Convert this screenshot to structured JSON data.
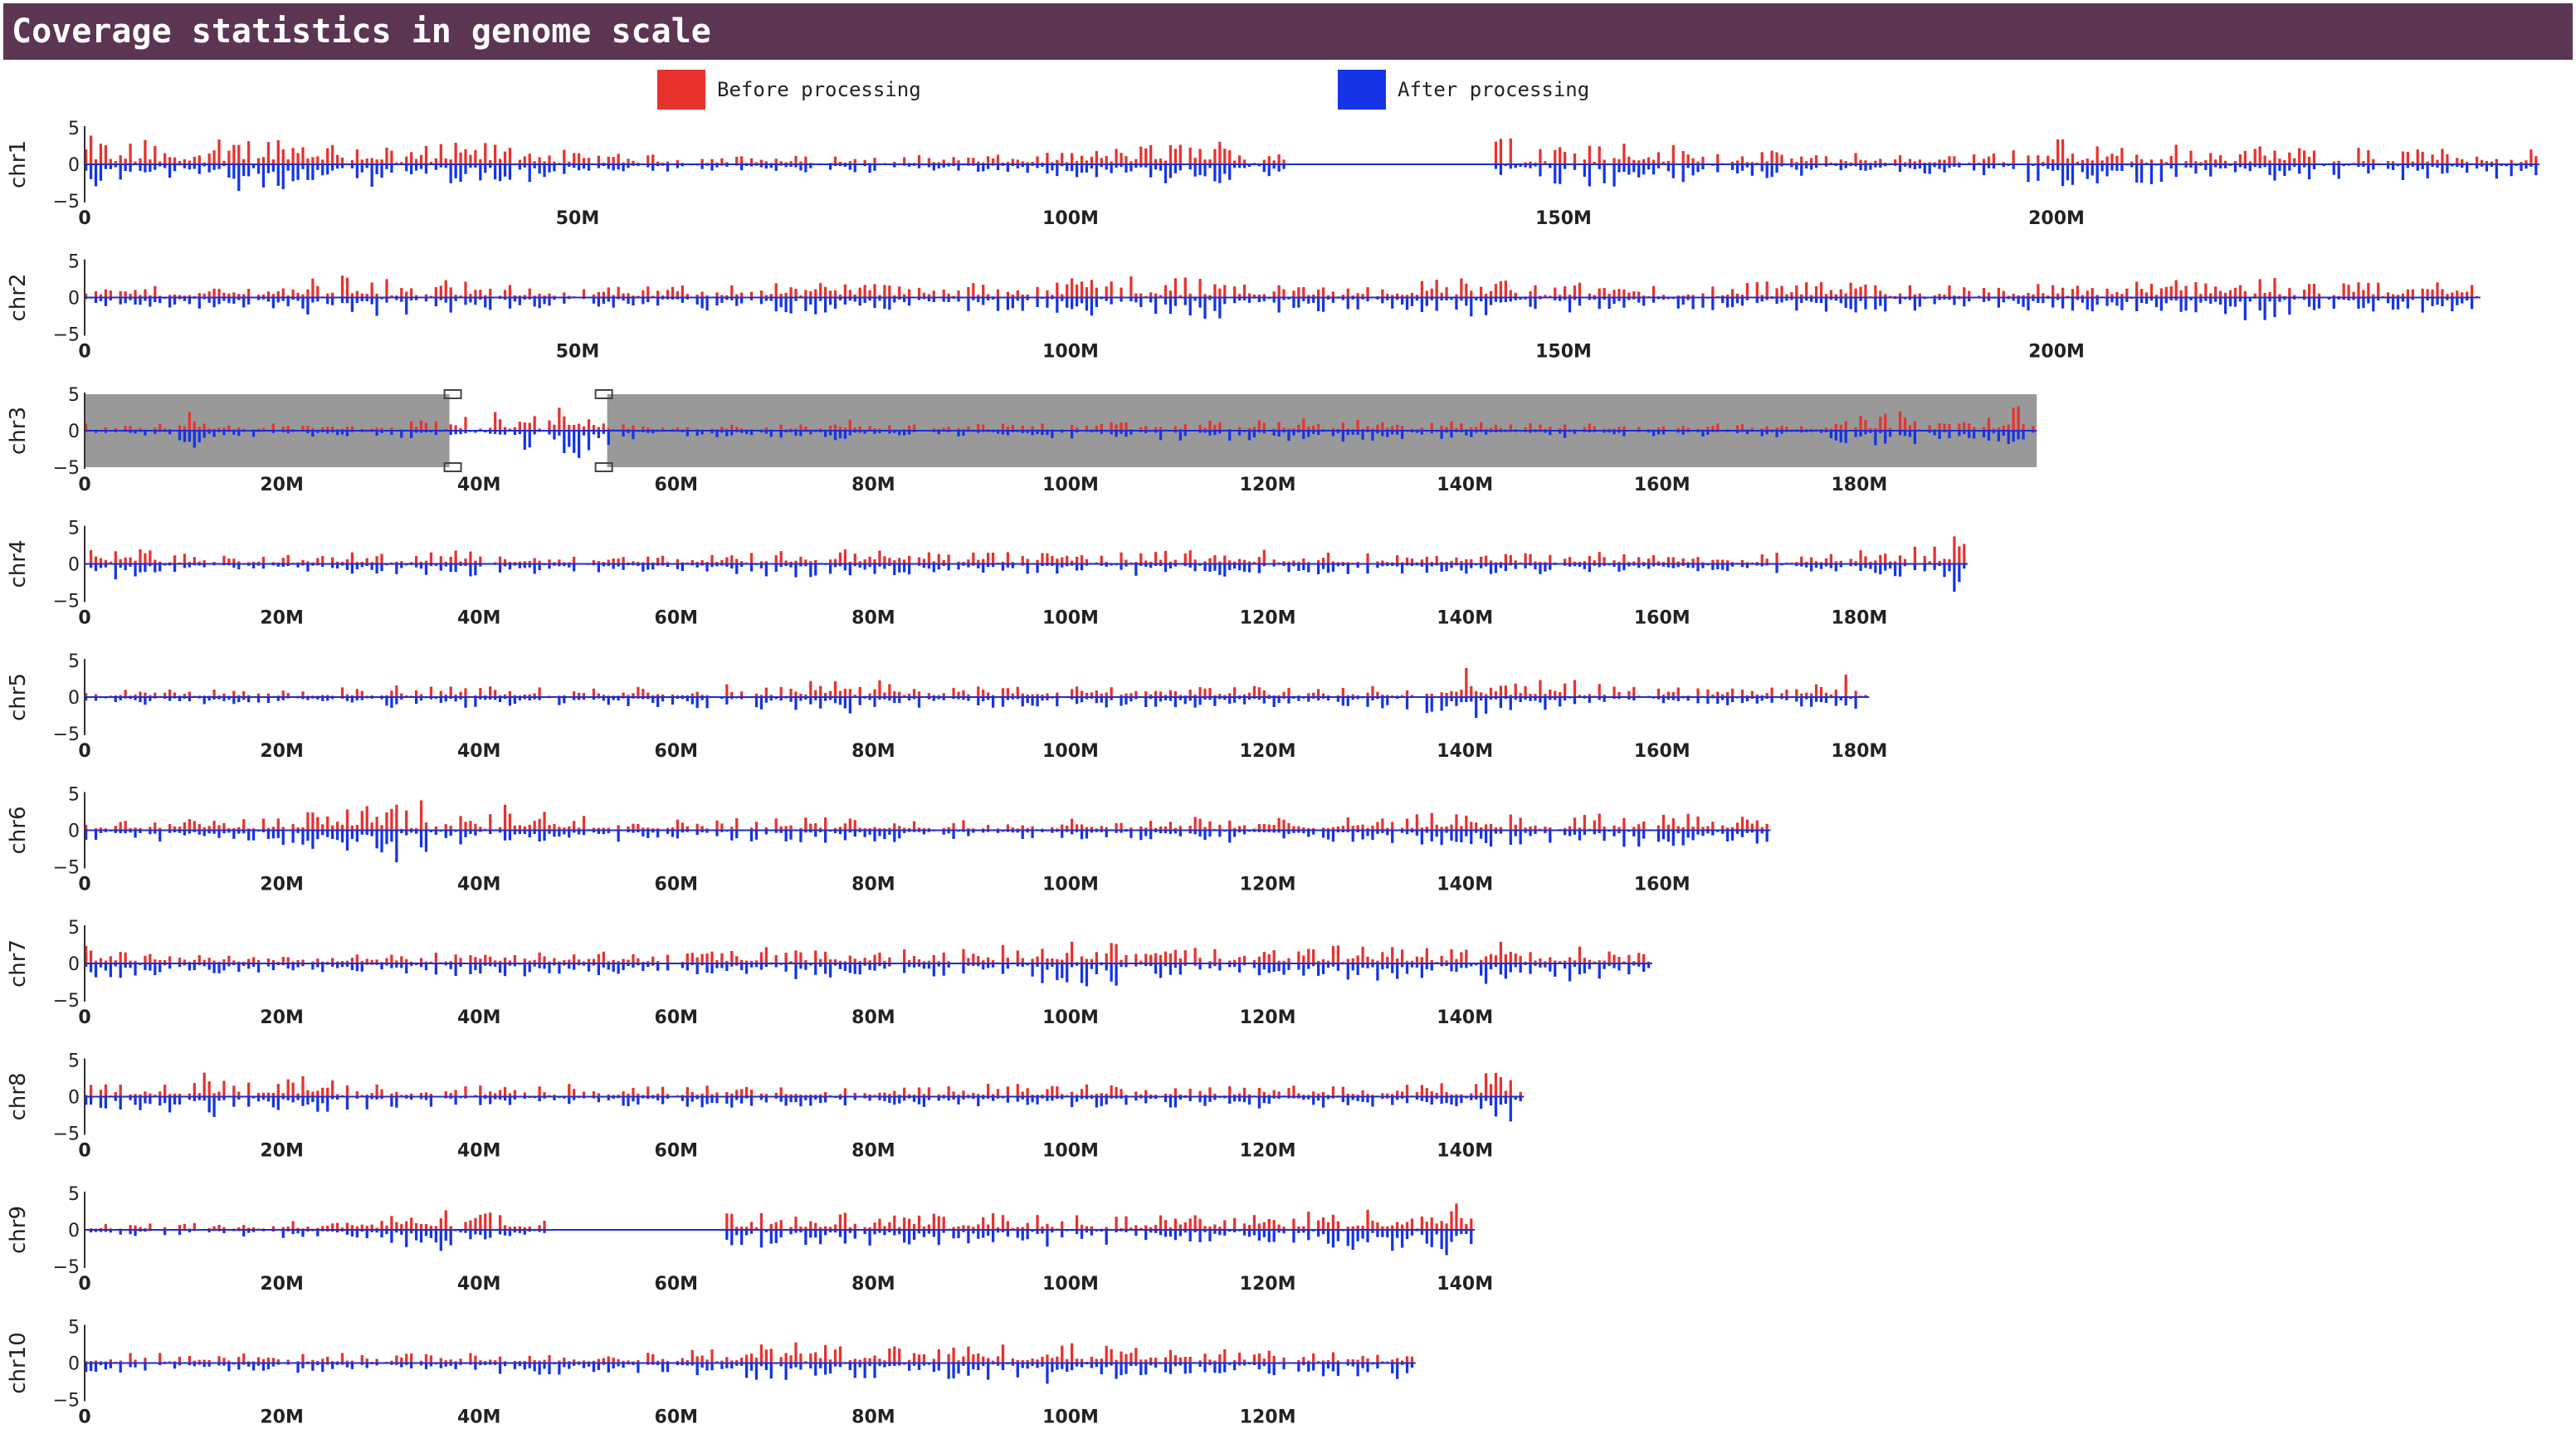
{
  "title": "Coverage statistics in genome scale",
  "legend": {
    "before_label": "Before processing",
    "after_label": "After processing",
    "before_color": "#e8322e",
    "after_color": "#1434e6"
  },
  "colors": {
    "axis": "#333333",
    "zero_line": "#1f2bd8",
    "highlight_band": "#999999",
    "selection_box": "#ffffff"
  },
  "chart_data": {
    "type": "bar",
    "y_ticks": [
      "5",
      "0",
      "−5"
    ],
    "ylim": [
      -5,
      5
    ],
    "bin_size_mb": 1,
    "selection": {
      "chromosome": "chr3",
      "region_mb": [
        37,
        53
      ]
    },
    "chromosomes": [
      {
        "name": "chr1",
        "length_mb": 249,
        "tick_values": [
          0,
          50,
          100,
          150,
          200
        ],
        "tick_labels": [
          "0",
          "50M",
          "100M",
          "150M",
          "200M"
        ],
        "gaps_mb": [
          [
            122,
            143
          ]
        ],
        "amplitude_profile": [
          [
            0,
            4.0
          ],
          [
            5,
            3.5
          ],
          [
            10,
            3.4
          ],
          [
            15,
            3.8
          ],
          [
            20,
            4.6
          ],
          [
            25,
            3.8
          ],
          [
            30,
            3.2
          ],
          [
            35,
            2.8
          ],
          [
            40,
            3.2
          ],
          [
            45,
            3.0
          ],
          [
            50,
            1.6
          ],
          [
            60,
            1.3
          ],
          [
            70,
            1.2
          ],
          [
            80,
            1.3
          ],
          [
            95,
            1.3
          ],
          [
            105,
            2.5
          ],
          [
            110,
            3.2
          ],
          [
            115,
            3.6
          ],
          [
            121,
            3.0
          ],
          [
            143,
            3.8
          ],
          [
            148,
            4.8
          ],
          [
            152,
            4.2
          ],
          [
            158,
            3.5
          ],
          [
            165,
            2.2
          ],
          [
            175,
            1.8
          ],
          [
            185,
            1.4
          ],
          [
            195,
            2.0
          ],
          [
            200,
            3.8
          ],
          [
            210,
            3.0
          ],
          [
            220,
            2.6
          ],
          [
            230,
            2.5
          ],
          [
            240,
            2.2
          ],
          [
            249,
            2.0
          ]
        ]
      },
      {
        "name": "chr2",
        "length_mb": 243,
        "tick_values": [
          0,
          50,
          100,
          150,
          200
        ],
        "tick_labels": [
          "0",
          "50M",
          "100M",
          "150M",
          "200M"
        ],
        "gaps_mb": [],
        "amplitude_profile": [
          [
            0,
            1.5
          ],
          [
            10,
            1.6
          ],
          [
            20,
            1.8
          ],
          [
            25,
            3.5
          ],
          [
            30,
            3.2
          ],
          [
            40,
            2.0
          ],
          [
            50,
            1.4
          ],
          [
            60,
            1.8
          ],
          [
            70,
            2.2
          ],
          [
            75,
            2.8
          ],
          [
            85,
            1.6
          ],
          [
            95,
            2.5
          ],
          [
            100,
            3.2
          ],
          [
            110,
            3.6
          ],
          [
            120,
            2.5
          ],
          [
            130,
            1.8
          ],
          [
            140,
            3.0
          ],
          [
            150,
            2.3
          ],
          [
            160,
            1.6
          ],
          [
            170,
            2.2
          ],
          [
            180,
            2.2
          ],
          [
            190,
            1.8
          ],
          [
            200,
            2.0
          ],
          [
            210,
            2.4
          ],
          [
            220,
            4.2
          ],
          [
            225,
            2.0
          ],
          [
            235,
            2.2
          ],
          [
            243,
            2.5
          ]
        ]
      },
      {
        "name": "chr3",
        "length_mb": 198,
        "tick_values": [
          0,
          20,
          40,
          60,
          80,
          100,
          120,
          140,
          160,
          180
        ],
        "tick_labels": [
          "0",
          "20M",
          "40M",
          "60M",
          "80M",
          "100M",
          "120M",
          "140M",
          "160M",
          "180M"
        ],
        "gaps_mb": [],
        "amplitude_profile": [
          [
            0,
            1.0
          ],
          [
            9,
            1.2
          ],
          [
            10,
            3.8
          ],
          [
            12,
            1.2
          ],
          [
            20,
            1.0
          ],
          [
            30,
            0.8
          ],
          [
            37,
            2.2
          ],
          [
            42,
            2.6
          ],
          [
            46,
            3.0
          ],
          [
            50,
            4.3
          ],
          [
            53,
            2.2
          ],
          [
            58,
            1.0
          ],
          [
            75,
            1.0
          ],
          [
            76,
            4.5
          ],
          [
            78,
            0.8
          ],
          [
            90,
            1.0
          ],
          [
            105,
            1.2
          ],
          [
            115,
            1.6
          ],
          [
            120,
            1.8
          ],
          [
            130,
            1.5
          ],
          [
            145,
            1.2
          ],
          [
            160,
            1.0
          ],
          [
            175,
            1.2
          ],
          [
            184,
            2.8
          ],
          [
            188,
            1.3
          ],
          [
            196,
            3.6
          ],
          [
            198,
            1.0
          ]
        ]
      },
      {
        "name": "chr4",
        "length_mb": 191,
        "tick_values": [
          0,
          20,
          40,
          60,
          80,
          100,
          120,
          140,
          160,
          180
        ],
        "tick_labels": [
          "0",
          "20M",
          "40M",
          "60M",
          "80M",
          "100M",
          "120M",
          "140M",
          "160M",
          "180M"
        ],
        "gaps_mb": [],
        "amplitude_profile": [
          [
            0,
            3.8
          ],
          [
            5,
            2.5
          ],
          [
            10,
            1.4
          ],
          [
            20,
            1.2
          ],
          [
            35,
            2.0
          ],
          [
            45,
            1.6
          ],
          [
            55,
            1.2
          ],
          [
            65,
            1.6
          ],
          [
            75,
            2.2
          ],
          [
            85,
            1.8
          ],
          [
            95,
            1.6
          ],
          [
            105,
            1.8
          ],
          [
            115,
            2.2
          ],
          [
            125,
            1.6
          ],
          [
            135,
            1.4
          ],
          [
            145,
            1.6
          ],
          [
            155,
            1.8
          ],
          [
            165,
            1.5
          ],
          [
            175,
            1.6
          ],
          [
            185,
            2.2
          ],
          [
            190,
            4.8
          ],
          [
            191,
            1.0
          ]
        ]
      },
      {
        "name": "chr5",
        "length_mb": 181,
        "tick_values": [
          0,
          20,
          40,
          60,
          80,
          100,
          120,
          140,
          160,
          180
        ],
        "tick_labels": [
          "0",
          "20M",
          "40M",
          "60M",
          "80M",
          "100M",
          "120M",
          "140M",
          "160M",
          "180M"
        ],
        "gaps_mb": [],
        "amplitude_profile": [
          [
            0,
            1.5
          ],
          [
            10,
            1.2
          ],
          [
            20,
            1.0
          ],
          [
            30,
            1.6
          ],
          [
            40,
            1.6
          ],
          [
            50,
            1.2
          ],
          [
            60,
            1.6
          ],
          [
            70,
            2.0
          ],
          [
            78,
            2.6
          ],
          [
            85,
            1.8
          ],
          [
            95,
            1.5
          ],
          [
            110,
            1.6
          ],
          [
            125,
            1.5
          ],
          [
            135,
            2.0
          ],
          [
            140,
            4.8
          ],
          [
            143,
            1.6
          ],
          [
            150,
            3.0
          ],
          [
            155,
            1.6
          ],
          [
            165,
            1.2
          ],
          [
            172,
            1.8
          ],
          [
            176,
            2.0
          ],
          [
            178,
            3.4
          ],
          [
            181,
            2.0
          ]
        ]
      },
      {
        "name": "chr6",
        "length_mb": 171,
        "tick_values": [
          0,
          20,
          40,
          60,
          80,
          100,
          120,
          140,
          160
        ],
        "tick_labels": [
          "0",
          "20M",
          "40M",
          "60M",
          "80M",
          "100M",
          "120M",
          "140M",
          "160M"
        ],
        "gaps_mb": [],
        "amplitude_profile": [
          [
            0,
            1.5
          ],
          [
            8,
            2.0
          ],
          [
            15,
            1.4
          ],
          [
            24,
            3.0
          ],
          [
            28,
            4.0
          ],
          [
            31,
            4.8
          ],
          [
            34,
            4.2
          ],
          [
            37,
            2.4
          ],
          [
            42,
            3.8
          ],
          [
            45,
            3.2
          ],
          [
            50,
            2.2
          ],
          [
            60,
            1.6
          ],
          [
            70,
            2.0
          ],
          [
            80,
            1.8
          ],
          [
            90,
            1.4
          ],
          [
            100,
            1.6
          ],
          [
            110,
            2.0
          ],
          [
            120,
            1.8
          ],
          [
            130,
            2.0
          ],
          [
            140,
            2.6
          ],
          [
            150,
            2.0
          ],
          [
            160,
            3.0
          ],
          [
            166,
            2.4
          ],
          [
            171,
            2.0
          ]
        ]
      },
      {
        "name": "chr7",
        "length_mb": 159,
        "tick_values": [
          0,
          20,
          40,
          60,
          80,
          100,
          120,
          140
        ],
        "tick_labels": [
          "0",
          "20M",
          "40M",
          "60M",
          "80M",
          "100M",
          "120M",
          "140M"
        ],
        "gaps_mb": [],
        "amplitude_profile": [
          [
            0,
            2.5
          ],
          [
            10,
            1.6
          ],
          [
            20,
            1.4
          ],
          [
            30,
            1.2
          ],
          [
            40,
            2.2
          ],
          [
            50,
            1.8
          ],
          [
            60,
            1.4
          ],
          [
            70,
            2.4
          ],
          [
            80,
            1.8
          ],
          [
            90,
            2.2
          ],
          [
            98,
            3.2
          ],
          [
            102,
            3.8
          ],
          [
            108,
            2.4
          ],
          [
            118,
            1.8
          ],
          [
            128,
            2.6
          ],
          [
            138,
            2.4
          ],
          [
            143,
            3.2
          ],
          [
            148,
            2.0
          ],
          [
            152,
            3.0
          ],
          [
            159,
            1.5
          ]
        ]
      },
      {
        "name": "chr8",
        "length_mb": 146,
        "tick_values": [
          0,
          20,
          40,
          60,
          80,
          100,
          120,
          140
        ],
        "tick_labels": [
          "0",
          "20M",
          "40M",
          "60M",
          "80M",
          "100M",
          "120M",
          "140M"
        ],
        "gaps_mb": [],
        "amplitude_profile": [
          [
            0,
            1.6
          ],
          [
            8,
            2.2
          ],
          [
            12,
            3.4
          ],
          [
            18,
            1.8
          ],
          [
            22,
            3.2
          ],
          [
            26,
            2.0
          ],
          [
            35,
            1.6
          ],
          [
            45,
            2.0
          ],
          [
            55,
            1.4
          ],
          [
            65,
            1.6
          ],
          [
            75,
            1.6
          ],
          [
            85,
            1.8
          ],
          [
            95,
            1.8
          ],
          [
            105,
            1.6
          ],
          [
            115,
            1.8
          ],
          [
            125,
            1.6
          ],
          [
            135,
            1.8
          ],
          [
            140,
            2.0
          ],
          [
            144,
            4.8
          ],
          [
            146,
            4.0
          ]
        ]
      },
      {
        "name": "chr9",
        "length_mb": 141,
        "tick_values": [
          0,
          20,
          40,
          60,
          80,
          100,
          120,
          140
        ],
        "tick_labels": [
          "0",
          "20M",
          "40M",
          "60M",
          "80M",
          "100M",
          "120M",
          "140M"
        ],
        "gaps_mb": [
          [
            47,
            65
          ]
        ],
        "amplitude_profile": [
          [
            0,
            1.2
          ],
          [
            10,
            1.0
          ],
          [
            20,
            1.2
          ],
          [
            30,
            1.6
          ],
          [
            33,
            3.4
          ],
          [
            38,
            3.0
          ],
          [
            44,
            2.0
          ],
          [
            46,
            1.5
          ],
          [
            65,
            2.8
          ],
          [
            70,
            2.6
          ],
          [
            80,
            2.4
          ],
          [
            90,
            2.2
          ],
          [
            100,
            2.6
          ],
          [
            110,
            2.2
          ],
          [
            120,
            2.4
          ],
          [
            125,
            2.8
          ],
          [
            130,
            3.0
          ],
          [
            135,
            3.4
          ],
          [
            138,
            4.2
          ],
          [
            141,
            2.5
          ]
        ]
      },
      {
        "name": "chr10",
        "length_mb": 135,
        "tick_values": [
          0,
          20,
          40,
          60,
          80,
          100,
          120
        ],
        "tick_labels": [
          "0",
          "20M",
          "40M",
          "60M",
          "80M",
          "100M",
          "120M"
        ],
        "gaps_mb": [],
        "amplitude_profile": [
          [
            0,
            1.4
          ],
          [
            10,
            1.6
          ],
          [
            20,
            1.4
          ],
          [
            30,
            1.8
          ],
          [
            40,
            1.6
          ],
          [
            45,
            1.8
          ],
          [
            55,
            1.4
          ],
          [
            60,
            2.0
          ],
          [
            65,
            2.2
          ],
          [
            70,
            3.2
          ],
          [
            75,
            2.6
          ],
          [
            80,
            2.4
          ],
          [
            85,
            2.4
          ],
          [
            95,
            2.6
          ],
          [
            100,
            3.4
          ],
          [
            105,
            2.2
          ],
          [
            112,
            2.0
          ],
          [
            122,
            2.0
          ],
          [
            128,
            2.2
          ],
          [
            134,
            3.4
          ],
          [
            135,
            2.0
          ]
        ]
      }
    ]
  }
}
